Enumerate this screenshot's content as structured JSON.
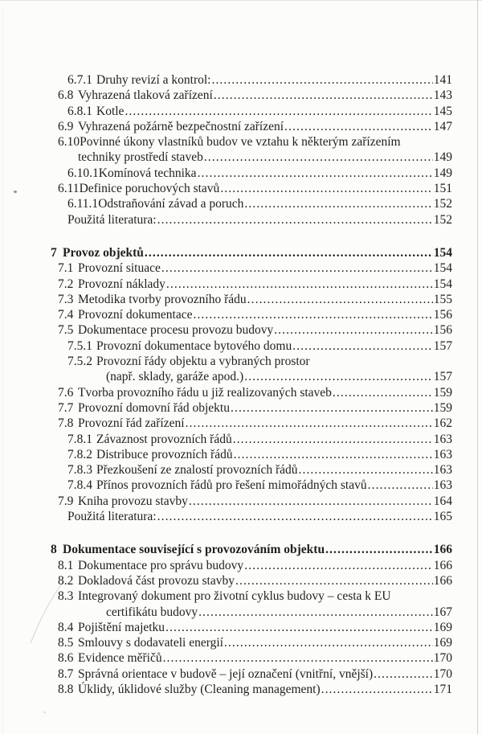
{
  "document": {
    "kind": "book-table-of-contents-page",
    "language": "cs"
  },
  "colors": {
    "paper": "#fcfcfb",
    "ink": "#201f1d",
    "scan_edge_right": "#cfcfcf",
    "scan_edge_top": "#e3e3e3"
  },
  "toc": {
    "entries": [
      {
        "level": "l3",
        "num": "6.7.1",
        "title": "Druhy revizí a kontrol:",
        "page": "141"
      },
      {
        "level": "l2",
        "num": "6.8",
        "title": "Vyhrazená tlaková zařízení",
        "page": "143"
      },
      {
        "level": "l3",
        "num": "6.8.1",
        "title": "Kotle",
        "page": "145"
      },
      {
        "level": "l2",
        "num": "6.9",
        "title": "Vyhrazená požárně bezpečnostní zařízení",
        "page": "147"
      },
      {
        "level": "l2",
        "num": "6.10",
        "title": "Povinné úkony vlastníků budov ve vztahu k některým zařízením",
        "page": ""
      },
      {
        "level": "cont-l2",
        "num": "",
        "title": "techniky prostředí staveb",
        "page": "149"
      },
      {
        "level": "l3",
        "num": "6.10.1",
        "title": "Komínová technika",
        "page": "149"
      },
      {
        "level": "l2",
        "num": "6.11",
        "title": "Definice poruchových stavů",
        "page": "151"
      },
      {
        "level": "l3",
        "num": "6.11.1",
        "title": "Odstraňování závad a poruch",
        "page": "152"
      },
      {
        "level": "plain",
        "num": "",
        "title": "Použitá literatura:",
        "page": "152"
      },
      {
        "level": "chapter",
        "num": "7",
        "title": "Provoz objektů",
        "page": "154"
      },
      {
        "level": "l2",
        "num": "7.1",
        "title": "Provozní situace",
        "page": "154"
      },
      {
        "level": "l2",
        "num": "7.2",
        "title": "Provozní náklady",
        "page": "154"
      },
      {
        "level": "l2",
        "num": "7.3",
        "title": "Metodika tvorby provozního řádu",
        "page": "155"
      },
      {
        "level": "l2",
        "num": "7.4",
        "title": "Provozní dokumentace",
        "page": "156"
      },
      {
        "level": "l2",
        "num": "7.5",
        "title": "Dokumentace procesu provozu budovy",
        "page": "156"
      },
      {
        "level": "l3",
        "num": "7.5.1",
        "title": "Provozní dokumentace bytového domu",
        "page": "157"
      },
      {
        "level": "l3",
        "num": "7.5.2",
        "title": "Provozní řády objektu a vybraných prostor",
        "page": ""
      },
      {
        "level": "cont-l3",
        "num": "",
        "title": "(např. sklady, garáže apod.)",
        "page": "157"
      },
      {
        "level": "l2",
        "num": "7.6",
        "title": "Tvorba provozního řádu u již realizovaných staveb",
        "page": "159"
      },
      {
        "level": "l2",
        "num": "7.7",
        "title": "Provozní domovní řád objektu",
        "page": "159"
      },
      {
        "level": "l2",
        "num": "7.8",
        "title": "Provozní řád zařízení",
        "page": "162"
      },
      {
        "level": "l3",
        "num": "7.8.1",
        "title": "Závaznost provozních řádů",
        "page": "163"
      },
      {
        "level": "l3",
        "num": "7.8.2",
        "title": "Distribuce provozních řádů",
        "page": "163"
      },
      {
        "level": "l3",
        "num": "7.8.3",
        "title": "Přezkoušení ze znalostí provozních řádů",
        "page": "163"
      },
      {
        "level": "l3",
        "num": "7.8.4",
        "title": "Přínos provozních řádů pro řešení mimořádných stavů",
        "page": "163"
      },
      {
        "level": "l2",
        "num": "7.9",
        "title": "Kniha provozu stavby",
        "page": "164"
      },
      {
        "level": "plain",
        "num": "",
        "title": "Použitá literatura:",
        "page": "165"
      },
      {
        "level": "chapter",
        "num": "8",
        "title": "Dokumentace související s provozováním objektu",
        "page": "166"
      },
      {
        "level": "l2",
        "num": "8.1",
        "title": "Dokumentace pro správu budovy",
        "page": "166"
      },
      {
        "level": "l2",
        "num": "8.2",
        "title": "Dokladová část provozu stavby",
        "page": "166"
      },
      {
        "level": "l2",
        "num": "8.3",
        "title": "Integrovaný dokument pro životní cyklus budovy – cesta k EU",
        "page": ""
      },
      {
        "level": "cont-l3",
        "num": "",
        "title": "certifikátu budovy",
        "page": "167"
      },
      {
        "level": "l2",
        "num": "8.4",
        "title": "Pojištění majetku",
        "page": "169"
      },
      {
        "level": "l2",
        "num": "8.5",
        "title": "Smlouvy s dodavateli energií",
        "page": "169"
      },
      {
        "level": "l2",
        "num": "8.6",
        "title": "Evidence měřičů",
        "page": "170"
      },
      {
        "level": "l2",
        "num": "8.7",
        "title": "Správná orientace v budově – její označení (vnitřní, vnější)",
        "page": "170"
      },
      {
        "level": "l2",
        "num": "8.8",
        "title": "Úklidy, úklidové služby (Cleaning management)",
        "page": "171"
      }
    ]
  }
}
